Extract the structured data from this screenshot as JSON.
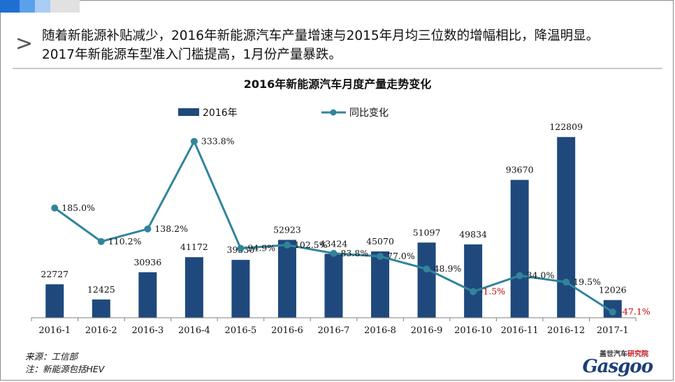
{
  "header": {
    "chevron": ">",
    "line1": "随着新能源补贴减少，2016年新能源汽车产量增速与2015年月均三位数的增幅相比，降温明显。",
    "line2": "2017年新能源车型准入门槛提高，1月份产量暴跌。"
  },
  "footer": {
    "source": "来源：工信部",
    "note": "注：新能源包括HEV"
  },
  "logo": {
    "top_left": "盖世汽车",
    "top_right": "研究院",
    "main": "Gasgoo"
  },
  "colors": {
    "bar": "#1f497d",
    "line": "#31849b",
    "negative_label": "#c00000",
    "accent": [
      "#1f6fd1",
      "#5aa0ea",
      "#a9cdf5",
      "#e1e1e1"
    ]
  },
  "chart_data": {
    "type": "bar",
    "title": "2016年新能源汽车月度产量走势变化",
    "categories": [
      "2016-1",
      "2016-2",
      "2016-3",
      "2016-4",
      "2016-5",
      "2016-6",
      "2016-7",
      "2016-8",
      "2016-9",
      "2016-10",
      "2016-11",
      "2016-12",
      "2017-1"
    ],
    "series": [
      {
        "name": "2016年",
        "type": "bar",
        "axis": "left",
        "values": [
          22727,
          12425,
          30936,
          41172,
          39330,
          52923,
          43424,
          45070,
          51097,
          49834,
          93670,
          122809,
          12026
        ],
        "labels": [
          "22727",
          "12425",
          "30936",
          "41172",
          "39330",
          "52923",
          "43424",
          "45070",
          "51097",
          "49834",
          "93670",
          "122809",
          "12026"
        ]
      },
      {
        "name": "同比变化",
        "type": "line",
        "axis": "right",
        "values": [
          185.0,
          110.2,
          138.2,
          333.8,
          94.9,
          102.5,
          83.8,
          77.0,
          48.9,
          -1.5,
          34.0,
          19.5,
          -47.1
        ],
        "labels": [
          "185.0%",
          "110.2%",
          "138.2%",
          "333.8%",
          "94.9%",
          "102.5%",
          "83.8%",
          "77.0%",
          "48.9%",
          "-1.5%",
          "34.0%",
          "19.5%",
          "-47.1%"
        ]
      }
    ],
    "ylim_left": [
      0,
      140000
    ],
    "ylim_right": [
      -60,
      400
    ],
    "legend": "top",
    "grid": false
  }
}
